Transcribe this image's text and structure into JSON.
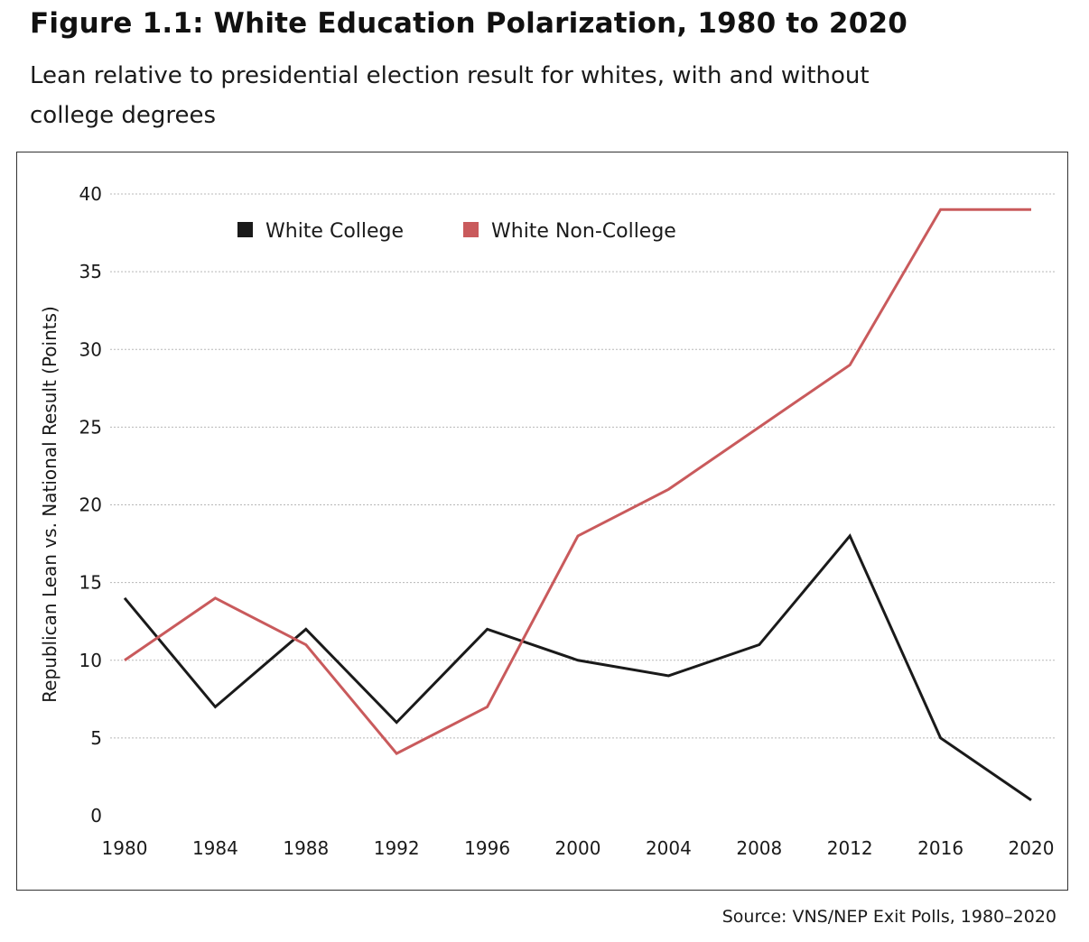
{
  "title": "Figure 1.1: White Education Polarization, 1980 to 2020",
  "subtitle": "Lean relative to presidential election result for whites, with and without college degrees",
  "source": "Source: VNS/NEP Exit Polls, 1980–2020",
  "chart_data": {
    "type": "line",
    "title": "Figure 1.1: White Education Polarization, 1980 to 2020",
    "subtitle": "Lean relative to presidential election result for whites, with and without college degrees",
    "xlabel": "",
    "ylabel": "Republican Lean vs. National Result (Points)",
    "x": [
      "1980",
      "1984",
      "1988",
      "1992",
      "1996",
      "2000",
      "2004",
      "2008",
      "2012",
      "2016",
      "2020"
    ],
    "ylim": [
      0,
      40
    ],
    "yticks": [
      0,
      5,
      10,
      15,
      20,
      25,
      30,
      35,
      40
    ],
    "grid": "horizontal dotted",
    "legend_position": "top-left",
    "series": [
      {
        "name": "White College",
        "color": "#1a1a1a",
        "values": [
          14,
          7,
          12,
          6,
          12,
          10,
          9,
          11,
          18,
          5,
          1
        ]
      },
      {
        "name": "White Non-College",
        "color": "#c95a5c",
        "values": [
          10,
          14,
          11,
          4,
          7,
          18,
          21,
          25,
          29,
          39,
          39
        ]
      }
    ]
  }
}
